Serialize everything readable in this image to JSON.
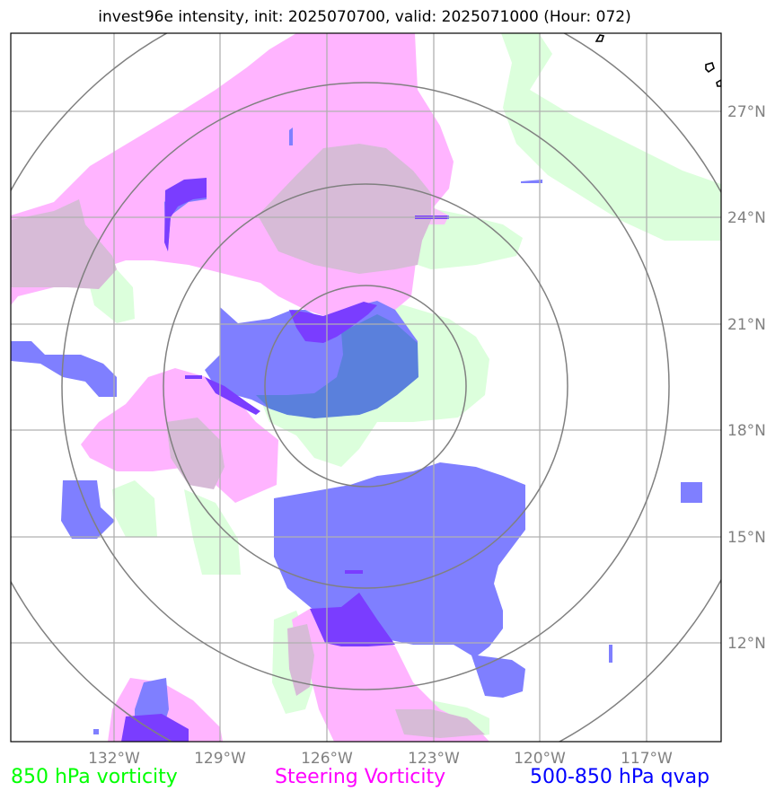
{
  "title": "invest96e intensity, init: 2025070700, valid: 2025071000 (Hour: 072)",
  "map": {
    "lon_labels": [
      "132°W",
      "129°W",
      "126°W",
      "123°W",
      "120°W",
      "117°W"
    ],
    "lat_labels": [
      "27°N",
      "24°N",
      "21°N",
      "18°N",
      "15°N",
      "12°N"
    ],
    "range_rings": 4
  },
  "legend": [
    {
      "label": "850 hPa vorticity",
      "color": "#00ff00"
    },
    {
      "label": "Steering Vorticity",
      "color": "#ff00ff"
    },
    {
      "label": "500-850 hPa qvap",
      "color": "#0000ff"
    }
  ],
  "colors": {
    "vorticity_850": "#dcffdc",
    "steering_vorticity": "#ffb4ff",
    "steering_overlap": "#d7bbd7",
    "qvap": "#7f7fff",
    "qvap_overlap": "#5a80dc",
    "qvap_core": "#7a3dff",
    "grid": "#b0b0b0",
    "ring": "#808080",
    "label": "#808080"
  }
}
